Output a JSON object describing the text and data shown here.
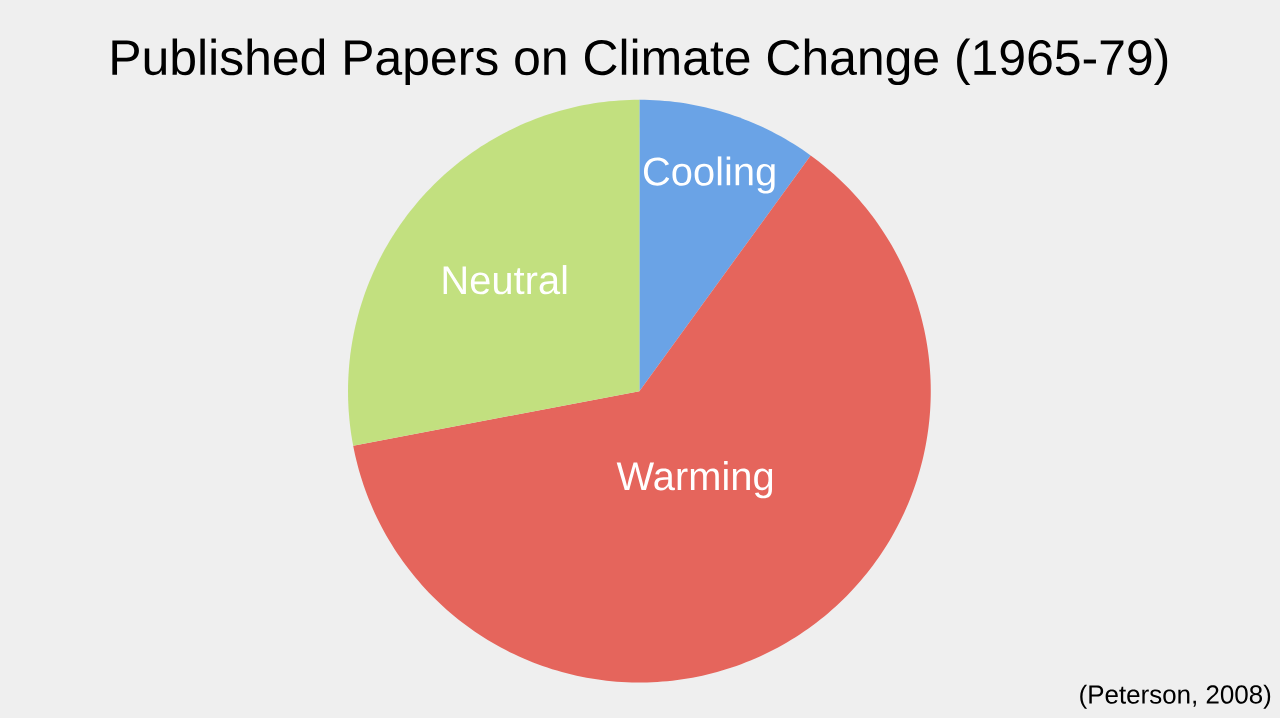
{
  "chart_data": {
    "type": "pie",
    "title": "Published Papers on Climate Change (1965-79)",
    "categories": [
      "Cooling",
      "Warming",
      "Neutral"
    ],
    "values": [
      10,
      62,
      28
    ],
    "colors": [
      "#6aa3e6",
      "#e5655c",
      "#c2e07f"
    ],
    "annotations": [
      "(Peterson, 2008)"
    ]
  }
}
